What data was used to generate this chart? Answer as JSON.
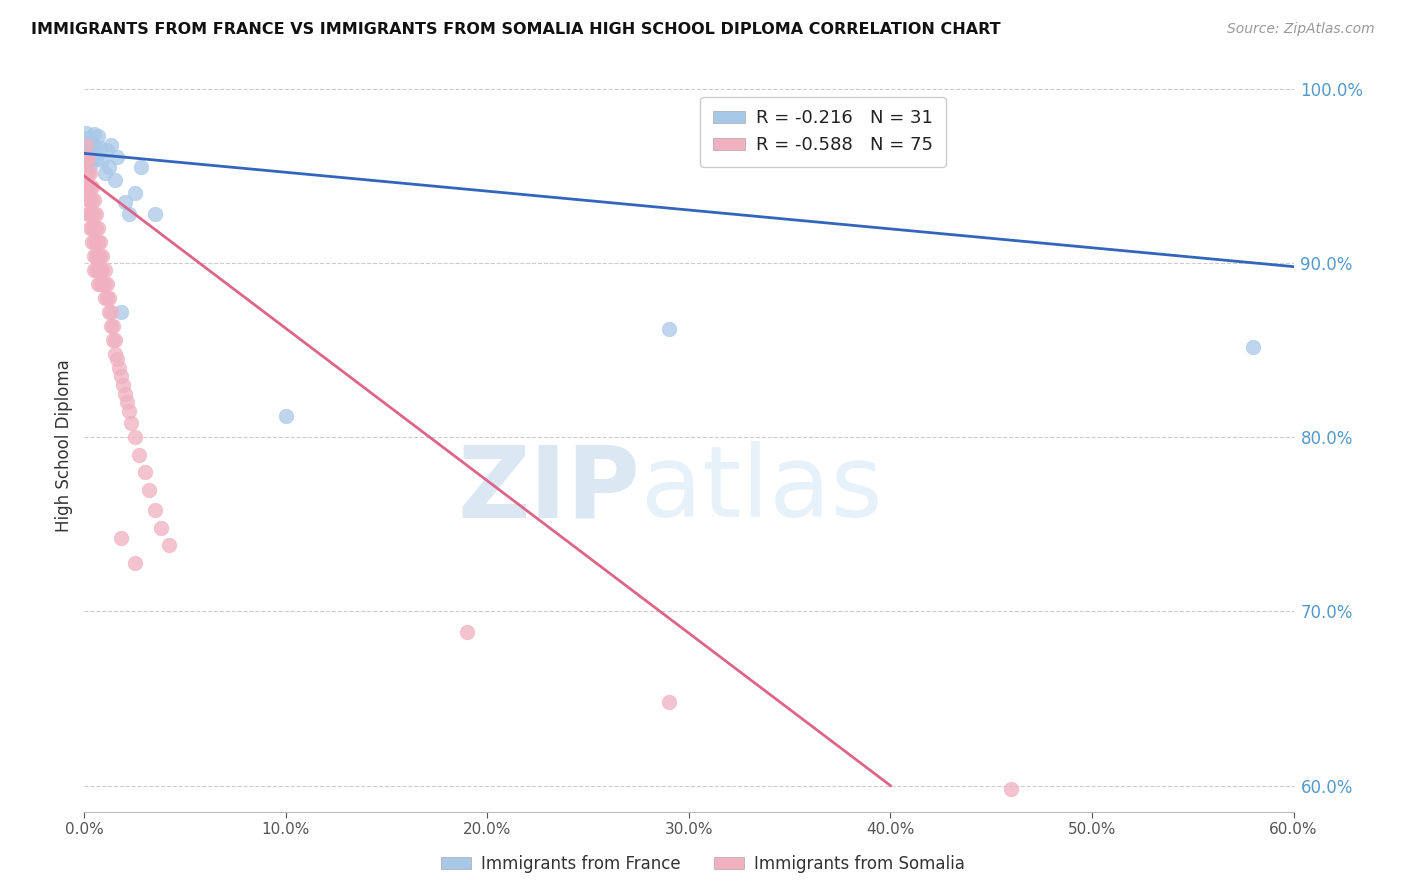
{
  "title": "IMMIGRANTS FROM FRANCE VS IMMIGRANTS FROM SOMALIA HIGH SCHOOL DIPLOMA CORRELATION CHART",
  "source": "Source: ZipAtlas.com",
  "ylabel": "High School Diploma",
  "xlim": [
    0.0,
    0.6
  ],
  "ylim": [
    0.585,
    1.005
  ],
  "yticks": [
    0.6,
    0.7,
    0.8,
    0.9,
    1.0
  ],
  "ytick_labels": [
    "60.0%",
    "70.0%",
    "80.0%",
    "90.0%",
    "100.0%"
  ],
  "xticks": [
    0.0,
    0.1,
    0.2,
    0.3,
    0.4,
    0.5,
    0.6
  ],
  "xtick_labels": [
    "0.0%",
    "10.0%",
    "20.0%",
    "30.0%",
    "40.0%",
    "50.0%",
    "60.0%"
  ],
  "france_color": "#a8c8e8",
  "somalia_color": "#f0b0c0",
  "france_line_color": "#3366bb",
  "somalia_line_color": "#dd6688",
  "legend_france_label": "Immigrants from France",
  "legend_somalia_label": "Immigrants from Somalia",
  "france_R": -0.216,
  "france_N": 31,
  "somalia_R": -0.588,
  "somalia_N": 75,
  "watermark_zip": "ZIP",
  "watermark_atlas": "atlas",
  "france_line_x0": 0.0,
  "france_line_y0": 0.963,
  "france_line_x1": 0.6,
  "france_line_y1": 0.898,
  "somalia_line_x0": 0.0,
  "somalia_line_y0": 0.95,
  "somalia_line_x1": 0.4,
  "somalia_line_y1": 0.6,
  "france_x": [
    0.001,
    0.001,
    0.002,
    0.002,
    0.002,
    0.003,
    0.003,
    0.003,
    0.004,
    0.004,
    0.005,
    0.005,
    0.006,
    0.007,
    0.008,
    0.009,
    0.01,
    0.011,
    0.012,
    0.013,
    0.015,
    0.016,
    0.018,
    0.02,
    0.022,
    0.025,
    0.028,
    0.035,
    0.1,
    0.29,
    0.58
  ],
  "france_y": [
    0.975,
    0.968,
    0.972,
    0.965,
    0.958,
    0.97,
    0.963,
    0.956,
    0.968,
    0.961,
    0.974,
    0.967,
    0.96,
    0.973,
    0.966,
    0.959,
    0.952,
    0.965,
    0.955,
    0.968,
    0.948,
    0.961,
    0.872,
    0.935,
    0.928,
    0.94,
    0.955,
    0.928,
    0.812,
    0.862,
    0.852
  ],
  "somalia_x": [
    0.001,
    0.001,
    0.001,
    0.001,
    0.002,
    0.002,
    0.002,
    0.002,
    0.002,
    0.003,
    0.003,
    0.003,
    0.003,
    0.003,
    0.004,
    0.004,
    0.004,
    0.004,
    0.004,
    0.005,
    0.005,
    0.005,
    0.005,
    0.005,
    0.005,
    0.006,
    0.006,
    0.006,
    0.006,
    0.006,
    0.007,
    0.007,
    0.007,
    0.007,
    0.007,
    0.008,
    0.008,
    0.008,
    0.008,
    0.009,
    0.009,
    0.009,
    0.01,
    0.01,
    0.01,
    0.011,
    0.011,
    0.012,
    0.012,
    0.013,
    0.013,
    0.014,
    0.014,
    0.015,
    0.015,
    0.016,
    0.017,
    0.018,
    0.019,
    0.02,
    0.021,
    0.022,
    0.023,
    0.025,
    0.027,
    0.03,
    0.032,
    0.035,
    0.038,
    0.042,
    0.018,
    0.025,
    0.19,
    0.29,
    0.46
  ],
  "somalia_y": [
    0.968,
    0.96,
    0.952,
    0.944,
    0.96,
    0.952,
    0.944,
    0.936,
    0.928,
    0.952,
    0.944,
    0.936,
    0.928,
    0.92,
    0.944,
    0.936,
    0.928,
    0.92,
    0.912,
    0.936,
    0.928,
    0.92,
    0.912,
    0.904,
    0.896,
    0.928,
    0.92,
    0.912,
    0.904,
    0.896,
    0.92,
    0.912,
    0.904,
    0.896,
    0.888,
    0.912,
    0.904,
    0.896,
    0.888,
    0.904,
    0.896,
    0.888,
    0.896,
    0.888,
    0.88,
    0.888,
    0.88,
    0.88,
    0.872,
    0.872,
    0.864,
    0.864,
    0.856,
    0.856,
    0.848,
    0.845,
    0.84,
    0.835,
    0.83,
    0.825,
    0.82,
    0.815,
    0.808,
    0.8,
    0.79,
    0.78,
    0.77,
    0.758,
    0.748,
    0.738,
    0.742,
    0.728,
    0.688,
    0.648,
    0.598
  ]
}
